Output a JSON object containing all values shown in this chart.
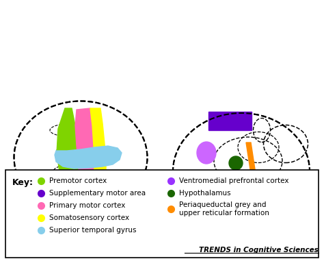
{
  "title": "TRENDS in Cognitive Sciences",
  "key_items_left": [
    {
      "label": "Premotor cortex",
      "color": "#7FD400"
    },
    {
      "label": "Supplementary motor area",
      "color": "#6600CC"
    },
    {
      "label": "Primary motor cortex",
      "color": "#FF69B4"
    },
    {
      "label": "Somatosensory cortex",
      "color": "#FFFF00"
    },
    {
      "label": "Superior temporal gyrus",
      "color": "#87CEEB"
    }
  ],
  "key_items_right": [
    {
      "label": "Ventromedial prefrontal cortex",
      "color": "#9933FF"
    },
    {
      "label": "Hypothalamus",
      "color": "#1A6600"
    },
    {
      "label": "Periaqueductal grey and\nupper reticular formation",
      "color": "#FF8C00"
    }
  ],
  "bg_color": "#FFFFFF",
  "box_color": "#000000"
}
